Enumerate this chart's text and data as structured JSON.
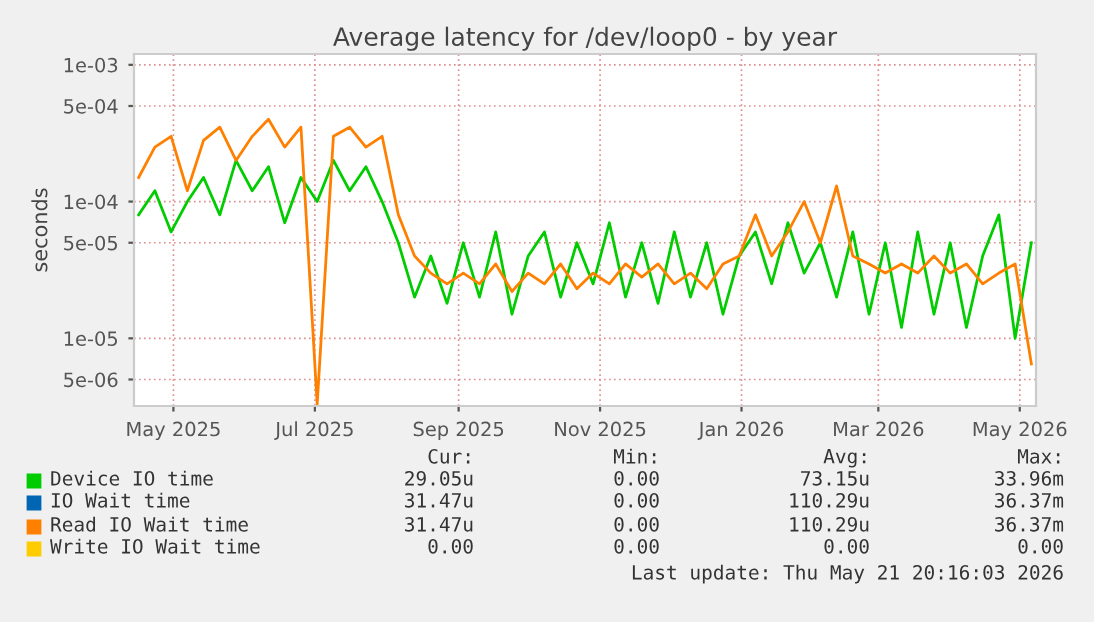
{
  "chart_data": {
    "type": "line",
    "title": "Average latency for /dev/loop0 - by year",
    "ylabel": "seconds",
    "log": "y",
    "x": [
      "2025-04-16",
      "2025-04-23",
      "2025-04-30",
      "2025-05-07",
      "2025-05-14",
      "2025-05-21",
      "2025-05-28",
      "2025-06-04",
      "2025-06-11",
      "2025-06-18",
      "2025-06-25",
      "2025-07-02",
      "2025-07-09",
      "2025-07-16",
      "2025-07-23",
      "2025-07-30",
      "2025-08-06",
      "2025-08-13",
      "2025-08-20",
      "2025-08-27",
      "2025-09-03",
      "2025-09-10",
      "2025-09-17",
      "2025-09-24",
      "2025-10-01",
      "2025-10-08",
      "2025-10-15",
      "2025-10-22",
      "2025-10-29",
      "2025-11-05",
      "2025-11-12",
      "2025-11-19",
      "2025-11-26",
      "2025-12-03",
      "2025-12-10",
      "2025-12-17",
      "2025-12-24",
      "2025-12-31",
      "2026-01-07",
      "2026-01-14",
      "2026-01-21",
      "2026-01-28",
      "2026-02-04",
      "2026-02-11",
      "2026-02-18",
      "2026-02-25",
      "2026-03-04",
      "2026-03-11",
      "2026-03-18",
      "2026-03-25",
      "2026-04-01",
      "2026-04-08",
      "2026-04-15",
      "2026-04-22",
      "2026-04-29",
      "2026-05-06"
    ],
    "series": [
      {
        "name": "Device IO time",
        "color": "#00cc00",
        "values": [
          8e-05,
          0.00012,
          6e-05,
          0.0001,
          0.00015,
          8e-05,
          0.0002,
          0.00012,
          0.00018,
          7e-05,
          0.00015,
          0.0001,
          0.0002,
          0.00012,
          0.00018,
          0.0001,
          5e-05,
          2e-05,
          4e-05,
          1.8e-05,
          5e-05,
          2e-05,
          6e-05,
          1.5e-05,
          4e-05,
          6e-05,
          2e-05,
          5e-05,
          2.5e-05,
          7e-05,
          2e-05,
          5e-05,
          1.8e-05,
          6e-05,
          2e-05,
          5e-05,
          1.5e-05,
          4e-05,
          6e-05,
          2.5e-05,
          7e-05,
          3e-05,
          5e-05,
          2e-05,
          6e-05,
          1.5e-05,
          5e-05,
          1.2e-05,
          6e-05,
          1.5e-05,
          5e-05,
          1.2e-05,
          4e-05,
          8e-05,
          1e-05,
          5e-05
        ]
      },
      {
        "name": "IO Wait time",
        "color": "#0066b3",
        "values": [
          null,
          null,
          null,
          null,
          null,
          null,
          null,
          null,
          null,
          null,
          null,
          null,
          null,
          null,
          null,
          null,
          null,
          null,
          null,
          null,
          null,
          null,
          null,
          null,
          null,
          null,
          null,
          null,
          null,
          null,
          null,
          null,
          null,
          null,
          null,
          null,
          null,
          null,
          null,
          null,
          null,
          null,
          null,
          null,
          null,
          null,
          null,
          null,
          null,
          null,
          null,
          null,
          null,
          null,
          null,
          null
        ]
      },
      {
        "name": "Read IO Wait time",
        "color": "#ff8000",
        "values": [
          0.00015,
          0.00025,
          0.0003,
          0.00012,
          0.00028,
          0.00035,
          0.0002,
          0.0003,
          0.0004,
          0.00025,
          0.00035,
          3.3e-06,
          0.0003,
          0.00035,
          0.00025,
          0.0003,
          8e-05,
          4e-05,
          3e-05,
          2.5e-05,
          3e-05,
          2.5e-05,
          3.5e-05,
          2.2e-05,
          3e-05,
          2.5e-05,
          3.5e-05,
          2.3e-05,
          3e-05,
          2.5e-05,
          3.5e-05,
          2.8e-05,
          3.5e-05,
          2.5e-05,
          3e-05,
          2.3e-05,
          3.5e-05,
          4e-05,
          8e-05,
          4e-05,
          6e-05,
          0.0001,
          5e-05,
          0.00013,
          4e-05,
          3.5e-05,
          3e-05,
          3.5e-05,
          3e-05,
          4e-05,
          3e-05,
          3.5e-05,
          2.5e-05,
          3e-05,
          3.5e-05,
          6.5e-06
        ]
      },
      {
        "name": "Write IO Wait time",
        "color": "#ffcc00",
        "values": [
          null,
          null,
          null,
          null,
          null,
          null,
          null,
          null,
          null,
          null,
          null,
          null,
          null,
          null,
          null,
          null,
          null,
          null,
          null,
          null,
          null,
          null,
          null,
          null,
          null,
          null,
          null,
          null,
          null,
          null,
          null,
          null,
          null,
          null,
          null,
          null,
          null,
          null,
          null,
          null,
          null,
          null,
          null,
          null,
          null,
          null,
          null,
          null,
          null,
          null,
          null,
          null,
          null,
          null,
          null,
          null
        ]
      }
    ],
    "xlim": [
      "2025-04-14",
      "2026-05-08"
    ],
    "xticks": [
      {
        "value": "2025-05-01",
        "label": "May 2025"
      },
      {
        "value": "2025-07-01",
        "label": "Jul 2025"
      },
      {
        "value": "2025-09-01",
        "label": "Sep 2025"
      },
      {
        "value": "2025-11-01",
        "label": "Nov 2025"
      },
      {
        "value": "2026-01-01",
        "label": "Jan 2026"
      },
      {
        "value": "2026-03-01",
        "label": "Mar 2026"
      },
      {
        "value": "2026-05-01",
        "label": "May 2026"
      }
    ],
    "ylim": [
      3.2e-06,
      0.0012
    ],
    "yticks": [
      {
        "value": 5e-06,
        "label": "5e-06"
      },
      {
        "value": 1e-05,
        "label": "1e-05"
      },
      {
        "value": 5e-05,
        "label": "5e-05"
      },
      {
        "value": 0.0001,
        "label": "1e-04"
      },
      {
        "value": 0.0005,
        "label": "5e-04"
      },
      {
        "value": 0.001,
        "label": "1e-03"
      }
    ],
    "grid": true,
    "legend": "bottom",
    "annotations": [
      "Cur:",
      "Min:",
      "Avg:",
      "Max:",
      "29.05u",
      "0.00",
      "73.15u",
      "33.96m",
      "31.47u",
      "0.00",
      "110.29u",
      "36.37m",
      "31.47u",
      "0.00",
      "110.29u",
      "36.37m",
      "0.00",
      "0.00",
      "0.00",
      "0.00",
      "Last update: Thu May 21 20:16:03 2026"
    ]
  }
}
